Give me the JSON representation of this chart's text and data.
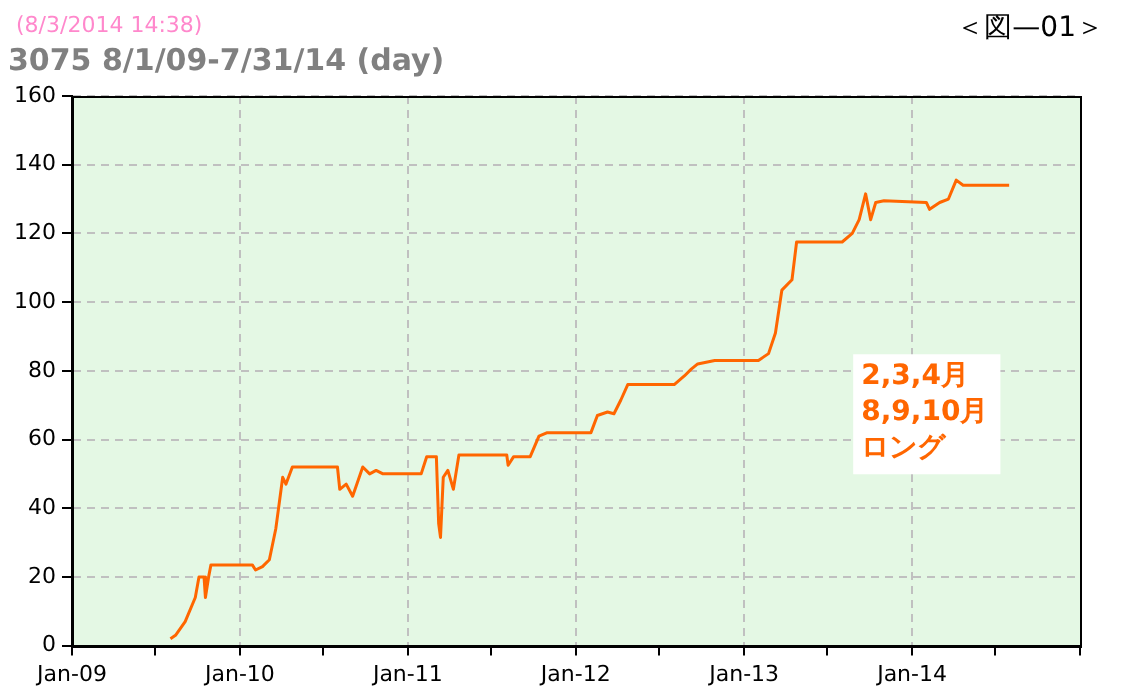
{
  "chart_data": {
    "type": "line",
    "title": "3075 8/1/09-7/31/14 (day)",
    "annotations": [
      "(8/3/2014 14:38)",
      "＜図—01＞",
      "2,3,4月",
      "8,9,10月",
      "ロング"
    ],
    "xlim": [
      "2009-01-01",
      "2015-01-01"
    ],
    "xticks": [
      {
        "value": "2009-01-01",
        "label": "Jan-09"
      },
      {
        "value": "2009-07-01",
        "label": null
      },
      {
        "value": "2010-01-01",
        "label": "Jan-10"
      },
      {
        "value": "2010-07-01",
        "label": null
      },
      {
        "value": "2011-01-01",
        "label": "Jan-11"
      },
      {
        "value": "2011-07-01",
        "label": null
      },
      {
        "value": "2012-01-01",
        "label": "Jan-12"
      },
      {
        "value": "2012-07-01",
        "label": null
      },
      {
        "value": "2013-01-01",
        "label": "Jan-13"
      },
      {
        "value": "2013-07-01",
        "label": null
      },
      {
        "value": "2014-01-01",
        "label": "Jan-14"
      },
      {
        "value": "2014-07-01",
        "label": null
      },
      {
        "value": "2015-01-01",
        "label": null
      }
    ],
    "ylim": [
      0,
      160
    ],
    "yticks": [
      0,
      20,
      40,
      60,
      80,
      100,
      120,
      140,
      160
    ],
    "grid": true,
    "legend": false,
    "marker": "none",
    "line_style": "solid",
    "series": [
      {
        "color": "#ff6600",
        "x": [
          "2009-08-03",
          "2009-08-14",
          "2009-09-04",
          "2009-09-26",
          "2009-10-04",
          "2009-10-15",
          "2009-10-18",
          "2009-10-25",
          "2009-10-30",
          "2010-01-28",
          "2010-02-04",
          "2010-02-19",
          "2010-03-06",
          "2010-03-20",
          "2010-04-04",
          "2010-04-11",
          "2010-04-25",
          "2010-08-01",
          "2010-08-06",
          "2010-08-20",
          "2010-09-03",
          "2010-09-25",
          "2010-10-10",
          "2010-10-24",
          "2010-11-08",
          "2011-01-30",
          "2011-02-11",
          "2011-03-04",
          "2011-03-09",
          "2011-03-13",
          "2011-03-19",
          "2011-03-29",
          "2011-04-10",
          "2011-04-22",
          "2011-08-04",
          "2011-08-07",
          "2011-08-19",
          "2011-09-24",
          "2011-10-13",
          "2011-10-31",
          "2012-02-03",
          "2012-02-17",
          "2012-03-10",
          "2012-03-24",
          "2012-04-08",
          "2012-04-23",
          "2012-08-02",
          "2012-08-24",
          "2012-09-08",
          "2012-09-22",
          "2012-10-29",
          "2013-02-01",
          "2013-02-23",
          "2013-03-10",
          "2013-03-24",
          "2013-04-15",
          "2013-04-25",
          "2013-08-02",
          "2013-08-24",
          "2013-09-08",
          "2013-09-22",
          "2013-10-03",
          "2013-10-14",
          "2013-11-01",
          "2014-02-01",
          "2014-02-08",
          "2014-03-02",
          "2014-03-21",
          "2014-04-07",
          "2014-04-22",
          "2014-05-06",
          "2014-07-31"
        ],
        "values": [
          2,
          3,
          7,
          14,
          20,
          20,
          14,
          20,
          23.5,
          23.5,
          22,
          23,
          25,
          34,
          49,
          47,
          52,
          52,
          45.5,
          47,
          43.5,
          52,
          50,
          51,
          50,
          50,
          55,
          55,
          35.5,
          31.5,
          49,
          51,
          45.5,
          55.5,
          55.5,
          52.5,
          55,
          55,
          61,
          62,
          62,
          67,
          68,
          67.5,
          71.5,
          76,
          76,
          78.5,
          80.5,
          82,
          83,
          83,
          85,
          91,
          103.5,
          106.5,
          117.5,
          117.5,
          120,
          124,
          131.5,
          124,
          129,
          129.5,
          129,
          127,
          129,
          130,
          135.5,
          134,
          134,
          134
        ]
      }
    ]
  }
}
